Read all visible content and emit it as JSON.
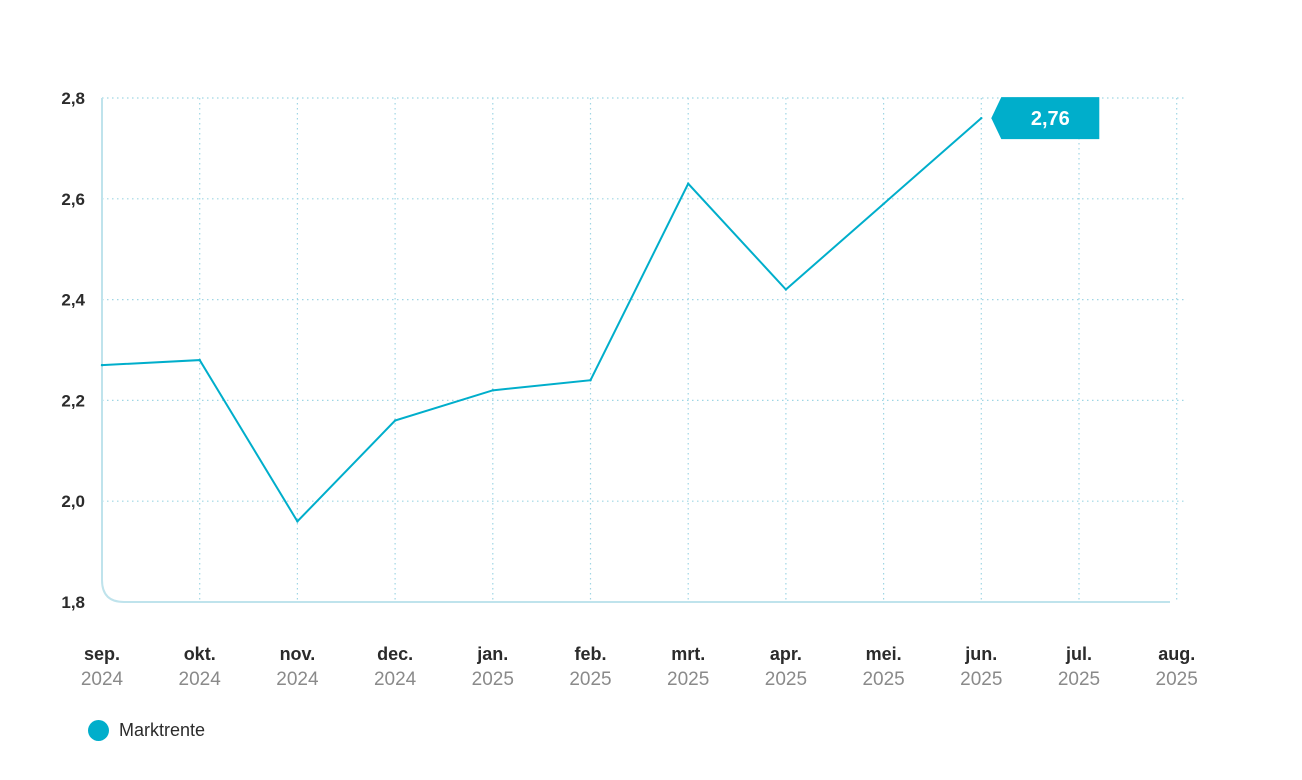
{
  "chart_data": {
    "type": "line",
    "title": "",
    "xlabel": "",
    "ylabel": "",
    "ylim": [
      1.8,
      2.8
    ],
    "yticks": [
      "1,8",
      "2,0",
      "2,2",
      "2,4",
      "2,6",
      "2,8"
    ],
    "x_ticks": [
      {
        "month": "sep.",
        "year": "2024"
      },
      {
        "month": "okt.",
        "year": "2024"
      },
      {
        "month": "nov.",
        "year": "2024"
      },
      {
        "month": "dec.",
        "year": "2024"
      },
      {
        "month": "jan.",
        "year": "2025"
      },
      {
        "month": "feb.",
        "year": "2025"
      },
      {
        "month": "mrt.",
        "year": "2025"
      },
      {
        "month": "apr.",
        "year": "2025"
      },
      {
        "month": "mei.",
        "year": "2025"
      },
      {
        "month": "jun.",
        "year": "2025"
      },
      {
        "month": "jul.",
        "year": "2025"
      },
      {
        "month": "aug.",
        "year": "2025"
      }
    ],
    "series": [
      {
        "name": "Marktrente",
        "color": "#00AECB",
        "values": [
          2.27,
          2.28,
          1.96,
          2.16,
          2.22,
          2.24,
          2.63,
          2.42,
          2.59,
          2.76
        ]
      }
    ],
    "last_value_label": "2,76",
    "grid": true,
    "legend_position": "bottom-left"
  },
  "legend": {
    "items": [
      {
        "label": "Marktrente",
        "color": "#00AECB"
      }
    ]
  }
}
